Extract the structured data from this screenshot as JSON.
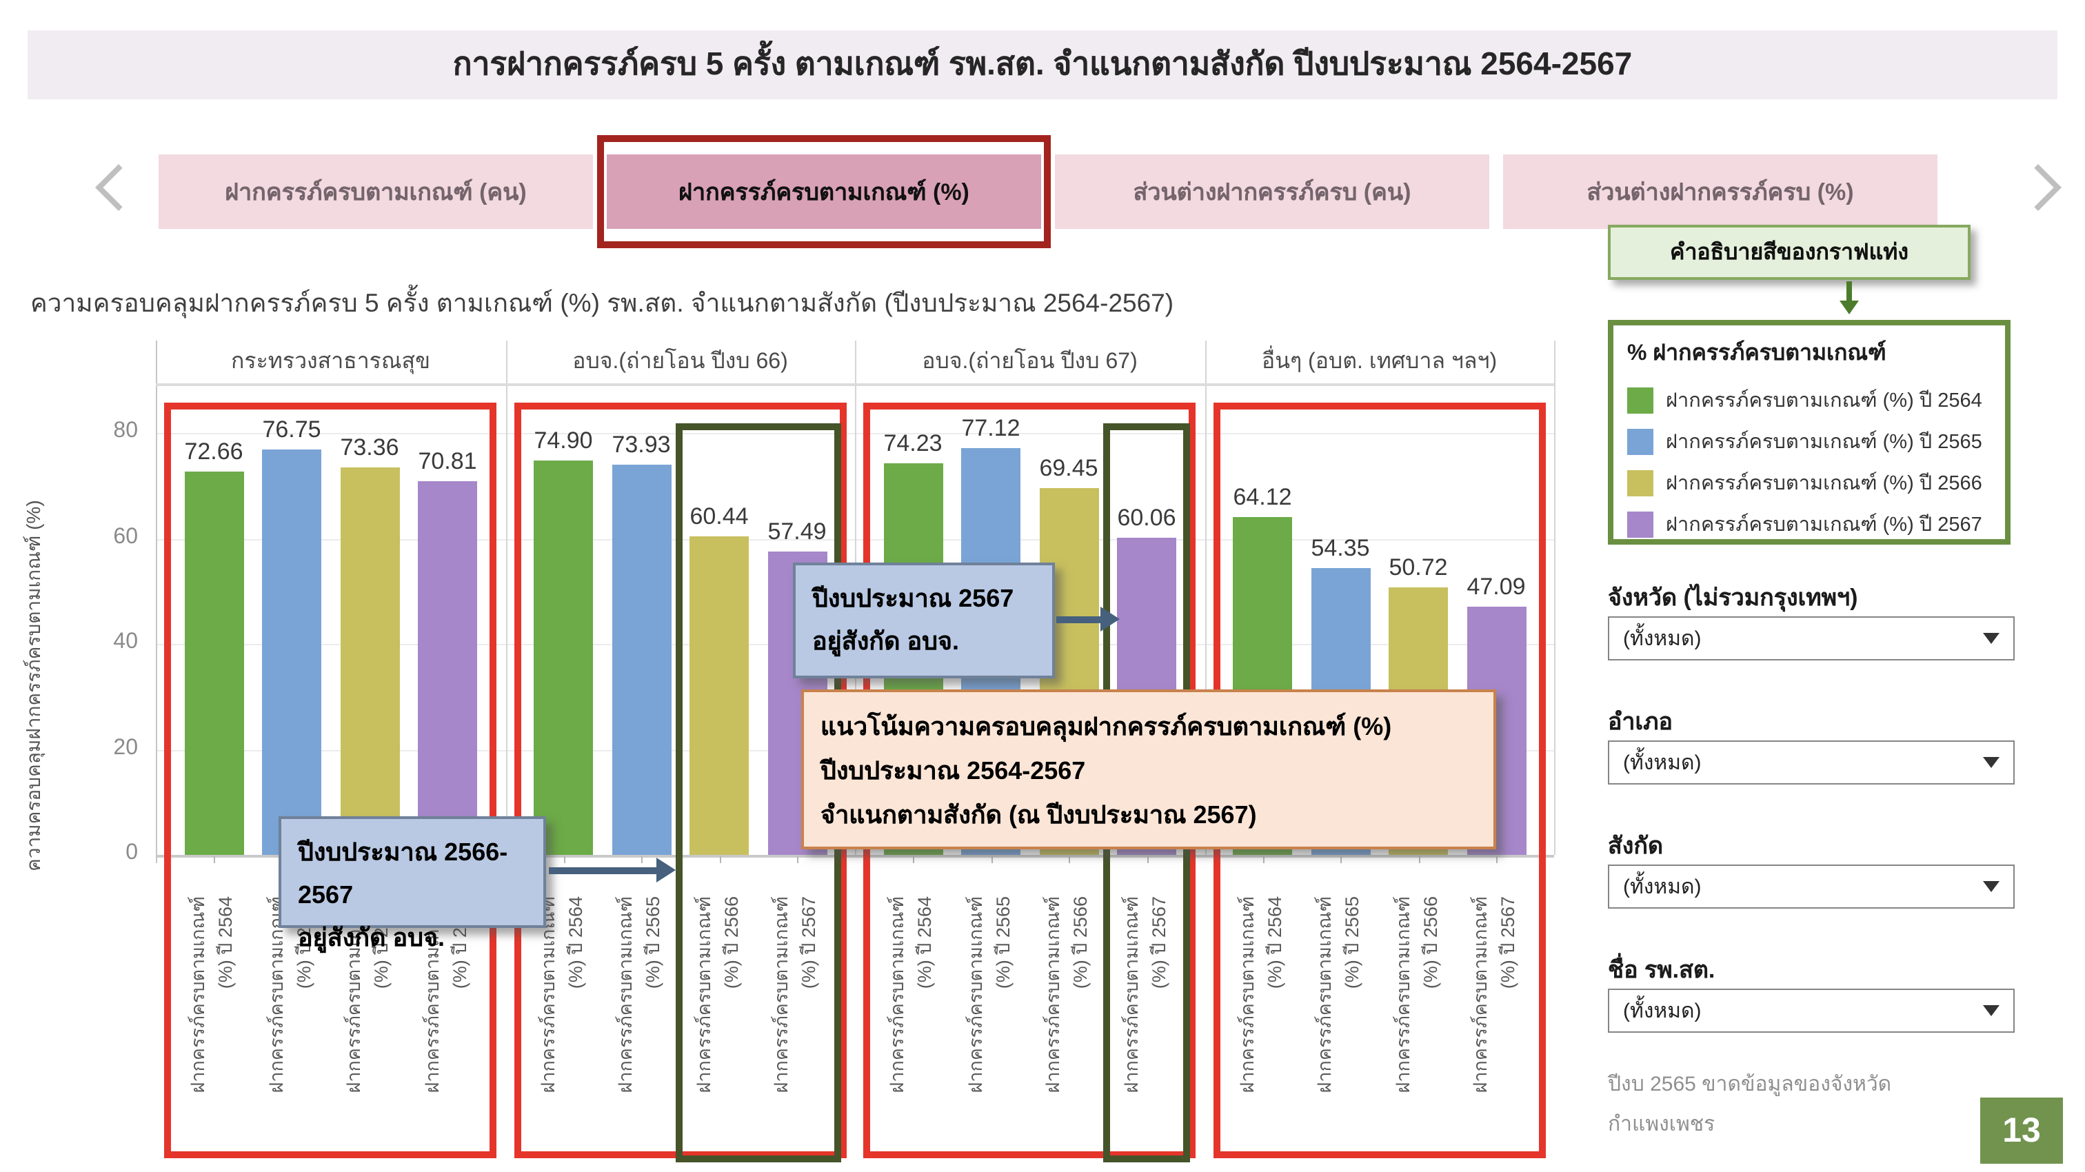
{
  "header": {
    "title": "การฝากครรภ์ครบ 5 ครั้ง ตามเกณฑ์ รพ.สต. จำแนกตามสังกัด ปีงบประมาณ 2564-2567"
  },
  "nav": {
    "tabs": [
      {
        "label": "ฝากครรภ์ครบตามเกณฑ์ (คน)",
        "active": false
      },
      {
        "label": "ฝากครรภ์ครบตามเกณฑ์ (%)",
        "active": true
      },
      {
        "label": "ส่วนต่างฝากครรภ์ครบ (คน)",
        "active": false
      },
      {
        "label": "ส่วนต่างฝากครรภ์ครบ (%)",
        "active": false
      }
    ]
  },
  "legend_callout": {
    "label": "คำอธิบายสีของกราฟแท่ง"
  },
  "chart_data": {
    "type": "bar",
    "title": "ความครอบคลุมฝากครรภ์ครบ 5 ครั้ง ตามเกณฑ์ (%) รพ.สต. จำแนกตามสังกัด (ปีงบประมาณ 2564-2567)",
    "ylabel": "ความครอบคลุมฝากครรภ์ครบตามเกณฑ์ (%)",
    "ylim": [
      0,
      88
    ],
    "yticks": [
      0,
      20,
      40,
      60,
      80
    ],
    "grid": "horizontal",
    "legend_position": "right",
    "categories": [
      "กระทรวงสาธารณสุข",
      "อบจ.(ถ่ายโอน ปีงบ 66)",
      "อบจ.(ถ่ายโอน ปีงบ 67)",
      "อื่นๆ (อบต. เทศบาล ฯลฯ)"
    ],
    "series": [
      {
        "name": "ฝากครรภ์ครบตามเกณฑ์ (%) ปี 2564",
        "color": "#6cab47",
        "values": [
          72.66,
          74.9,
          74.23,
          64.12
        ]
      },
      {
        "name": "ฝากครรภ์ครบตามเกณฑ์ (%) ปี 2565",
        "color": "#7aa4d6",
        "values": [
          76.75,
          73.93,
          77.12,
          54.35
        ]
      },
      {
        "name": "ฝากครรภ์ครบตามเกณฑ์ (%) ปี 2566",
        "color": "#c8c05f",
        "values": [
          73.36,
          60.44,
          69.45,
          50.72
        ]
      },
      {
        "name": "ฝากครรภ์ครบตามเกณฑ์ (%) ปี 2567",
        "color": "#a687c9",
        "values": [
          70.81,
          57.49,
          60.06,
          47.09
        ]
      }
    ],
    "bar_axis_label_line1": "ฝากครรภ์ครบตามเกณฑ์",
    "bar_axis_label_line2": [
      "(%) ปี 2564",
      "(%) ปี 2565",
      "(%) ปี 2566",
      "(%) ปี 2567"
    ],
    "group_outline_color": "#e5352b",
    "highlight_outline_color": "#46542a",
    "highlights": [
      {
        "group": 1,
        "bars": [
          2,
          3
        ]
      },
      {
        "group": 2,
        "bars": [
          3
        ]
      }
    ]
  },
  "legend": {
    "title": "% ฝากครรภ์ครบตามเกณฑ์",
    "items": [
      {
        "label": "ฝากครรภ์ครบตามเกณฑ์ (%) ปี 2564",
        "color": "#6cab47"
      },
      {
        "label": "ฝากครรภ์ครบตามเกณฑ์ (%) ปี 2565",
        "color": "#7aa4d6"
      },
      {
        "label": "ฝากครรภ์ครบตามเกณฑ์ (%) ปี 2566",
        "color": "#c8c05f"
      },
      {
        "label": "ฝากครรภ์ครบตามเกณฑ์ (%) ปี 2567",
        "color": "#a687c9"
      }
    ]
  },
  "filters": [
    {
      "label": "จังหวัด (ไม่รวมกรุงเทพฯ)",
      "value": "(ทั้งหมด)"
    },
    {
      "label": "อำเภอ",
      "value": "(ทั้งหมด)"
    },
    {
      "label": "สังกัด",
      "value": "(ทั้งหมด)"
    },
    {
      "label": "ชื่อ รพ.สต.",
      "value": "(ทั้งหมด)"
    }
  ],
  "note": {
    "line1": "ปีงบ 2565 ขาดข้อมูลของจังหวัด",
    "line2": "กำแพงเพชร"
  },
  "page_badge": "13",
  "annotations": {
    "blue1": {
      "lines": [
        "ปีงบประมาณ 2566-2567",
        "อยู่สังกัด อบจ."
      ]
    },
    "blue2": {
      "lines": [
        "ปีงบประมาณ 2567",
        "อยู่สังกัด อบจ."
      ]
    },
    "orange": {
      "lines": [
        "แนวโน้มความครอบคลุมฝากครรภ์ครบตามเกณฑ์ (%)",
        "ปีงบประมาณ 2564-2567",
        "จำแนกตามสังกัด (ณ ปีงบประมาณ 2567)"
      ]
    }
  }
}
